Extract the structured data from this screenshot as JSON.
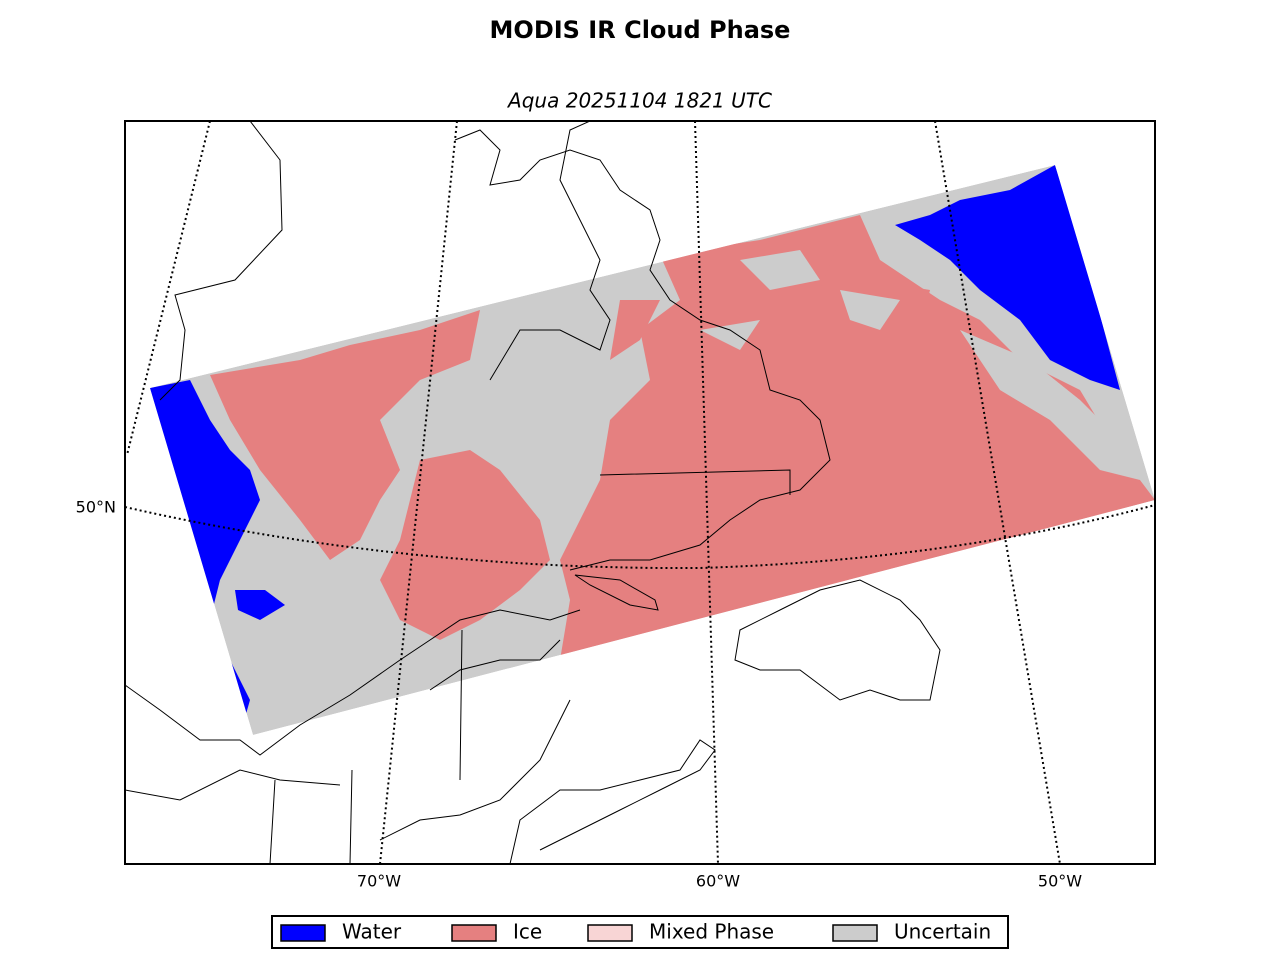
{
  "title": "MODIS IR Cloud Phase",
  "subtitle": "Aqua 20251104 1821 UTC",
  "map": {
    "lon_labels": [
      "70°W",
      "60°W",
      "50°W"
    ],
    "lat_labels": [
      "50°N"
    ]
  },
  "legend": [
    {
      "name": "Water",
      "color": "#0000ff"
    },
    {
      "name": "Ice",
      "color": "#e58080"
    },
    {
      "name": "Mixed Phase",
      "color": "#f8d5d5"
    },
    {
      "name": "Uncertain",
      "color": "#cccccc"
    }
  ]
}
